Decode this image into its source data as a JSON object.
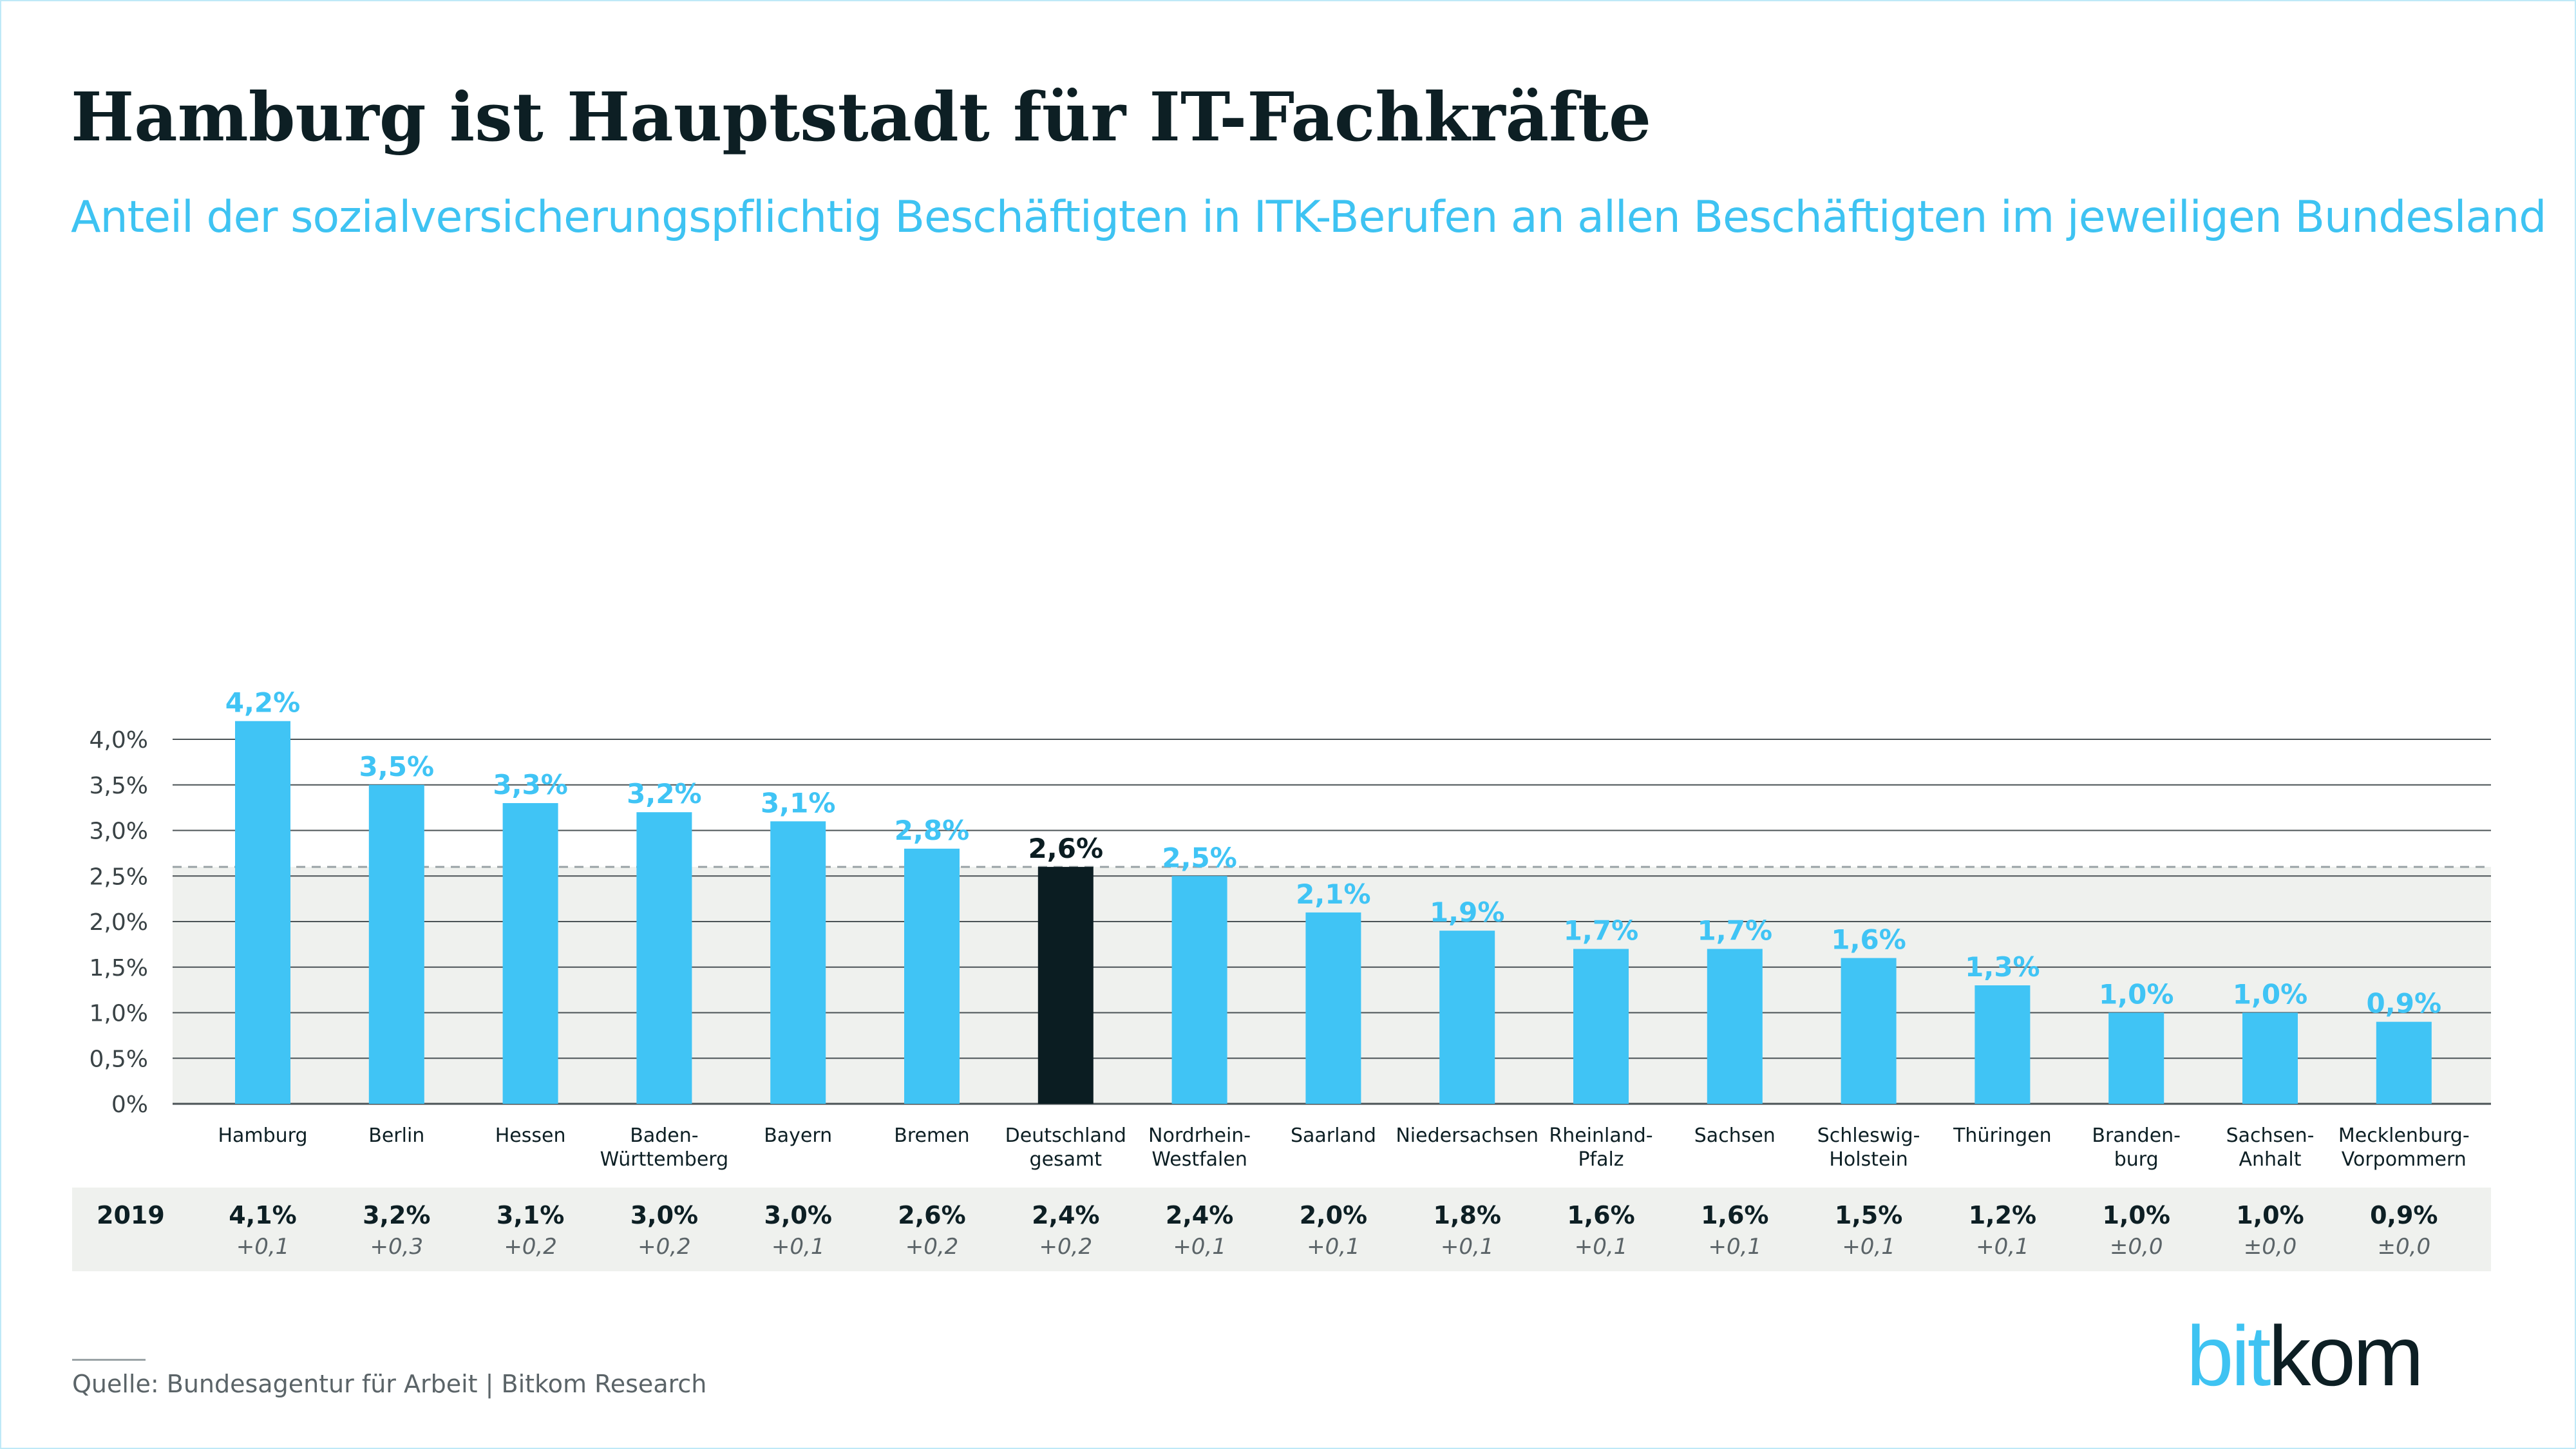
{
  "title": "Hamburg ist Hauptstadt für IT-Fachkräfte",
  "subtitle": "Anteil der sozialversicherungspflichtig Beschäftigten in ITK-Berufen an allen Beschäftigten im jeweiligen Bundesland",
  "source": "Quelle: Bundesagentur für Arbeit | Bitkom Research",
  "logo": {
    "part1": "bit",
    "part2": "kom"
  },
  "colors": {
    "bar": "#40c4f5",
    "highlight_bar": "#0b1d22",
    "label": "#40c4f5",
    "highlight_label": "#0b1d22",
    "shade": "#eff1ee",
    "grid": "#4b5356"
  },
  "chart_data": {
    "type": "bar",
    "categories": [
      [
        "Hamburg"
      ],
      [
        "Berlin"
      ],
      [
        "Hessen"
      ],
      [
        "Baden-",
        "Württemberg"
      ],
      [
        "Bayern"
      ],
      [
        "Bremen"
      ],
      [
        "Deutschland",
        "gesamt"
      ],
      [
        "Nordrhein-",
        "Westfalen"
      ],
      [
        "Saarland"
      ],
      [
        "Niedersachsen"
      ],
      [
        "Rheinland-",
        "Pfalz"
      ],
      [
        "Sachsen"
      ],
      [
        "Schleswig-",
        "Holstein"
      ],
      [
        "Thüringen"
      ],
      [
        "Branden-",
        "burg"
      ],
      [
        "Sachsen-",
        "Anhalt"
      ],
      [
        "Mecklenburg-",
        "Vorpommern"
      ]
    ],
    "values": [
      4.2,
      3.5,
      3.3,
      3.2,
      3.1,
      2.8,
      2.6,
      2.5,
      2.1,
      1.9,
      1.7,
      1.7,
      1.6,
      1.3,
      1.0,
      1.0,
      0.9
    ],
    "value_labels": [
      "4,2%",
      "3,5%",
      "3,3%",
      "3,2%",
      "3,1%",
      "2,8%",
      "2,6%",
      "2,5%",
      "2,1%",
      "1,9%",
      "1,7%",
      "1,7%",
      "1,6%",
      "1,3%",
      "1,0%",
      "1,0%",
      "0,9%"
    ],
    "highlight_index": 6,
    "reference_line": 2.6,
    "ylim": [
      0,
      4.0
    ],
    "yticks": [
      0,
      0.5,
      1.0,
      1.5,
      2.0,
      2.5,
      3.0,
      3.5,
      4.0
    ],
    "ytick_labels": [
      "0%",
      "0,5%",
      "1,0%",
      "1,5%",
      "2,0%",
      "2,5%",
      "3,0%",
      "3,5%",
      "4,0%"
    ],
    "grid": true,
    "comparison_table": {
      "row_label": "2019",
      "values": [
        "4,1%",
        "3,2%",
        "3,1%",
        "3,0%",
        "3,0%",
        "2,6%",
        "2,4%",
        "2,4%",
        "2,0%",
        "1,8%",
        "1,6%",
        "1,6%",
        "1,5%",
        "1,2%",
        "1,0%",
        "1,0%",
        "0,9%"
      ],
      "changes": [
        "+0,1",
        "+0,3",
        "+0,2",
        "+0,2",
        "+0,1",
        "+0,2",
        "+0,2",
        "+0,1",
        "+0,1",
        "+0,1",
        "+0,1",
        "+0,1",
        "+0,1",
        "+0,1",
        "±0,0",
        "±0,0",
        "±0,0"
      ]
    }
  }
}
